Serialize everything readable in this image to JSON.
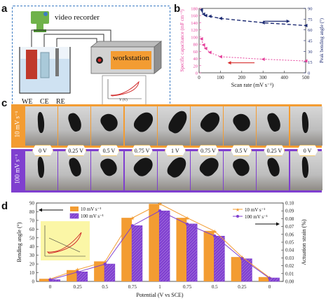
{
  "panels": {
    "a": "a",
    "b": "b",
    "c": "c",
    "d": "d"
  },
  "setup": {
    "video_recorder": "video recorder",
    "workstation": "workstation",
    "electrodes": [
      "WE",
      "CE",
      "RE"
    ],
    "inset_axis": "V (V)"
  },
  "colors": {
    "orange": "#f39c32",
    "purple": "#7f3fcf",
    "pink": "#e5409b",
    "navy": "#1d2b73",
    "dashed_border": "#3d7cc4"
  },
  "panel_c": {
    "row1_label": "10 mV s⁻¹",
    "row2_label": "100 mV s⁻¹",
    "potentials": [
      "0 V",
      "0.25 V",
      "0.5 V",
      "0.75 V",
      "1 V",
      "0.75 V",
      "0.5 V",
      "0.25 V",
      "0 V"
    ]
  },
  "chart_data": [
    {
      "type": "line",
      "xlabel": "Scan rate (mV s⁻¹)",
      "ylabel": "Specific capacitance (mF cm⁻²)",
      "ylabel2": "Peak bending angle (°)",
      "xlim": [
        0,
        500
      ],
      "ylim": [
        0,
        180
      ],
      "ylim2": [
        0,
        90
      ],
      "xticks": [
        0,
        100,
        200,
        300,
        400,
        500
      ],
      "yticks": [
        0,
        20,
        40,
        60,
        80,
        100,
        120,
        140,
        160,
        180
      ],
      "yticks2": [
        0,
        15,
        30,
        45,
        60,
        75,
        90
      ],
      "series": [
        {
          "axis": "left",
          "x": [
            10,
            20,
            30,
            50,
            100,
            300,
            500
          ],
          "values": [
            95,
            78,
            68,
            57,
            45,
            38,
            33
          ]
        },
        {
          "axis": "right",
          "x": [
            10,
            20,
            30,
            50,
            100,
            300,
            500
          ],
          "values": [
            88,
            82,
            80,
            79,
            76,
            70,
            66
          ]
        }
      ]
    },
    {
      "type": "bar",
      "xlabel": "Potential (V vs SCE)",
      "ylabel": "Bending angle (°)",
      "ylabel2": "Actuation strain (%)",
      "categories": [
        "0",
        "0.25",
        "0.5",
        "0.75",
        "1",
        "0.75",
        "0.5",
        "0.25",
        "0"
      ],
      "ylim": [
        0,
        90
      ],
      "ylim2": [
        0,
        0.1
      ],
      "yticks": [
        0,
        10,
        20,
        30,
        40,
        50,
        60,
        70,
        80,
        90
      ],
      "yticks2": [
        0,
        0.01,
        0.02,
        0.03,
        0.04,
        0.05,
        0.06,
        0.07,
        0.08,
        0.09,
        0.1
      ],
      "series": [
        {
          "name": "10 mV s⁻¹",
          "values": [
            3,
            13,
            23,
            73,
            89,
            73,
            58,
            28,
            5
          ]
        },
        {
          "name": "100 mV s⁻¹",
          "values": [
            2,
            11,
            20,
            64,
            81,
            66,
            52,
            26,
            4
          ]
        }
      ],
      "strain_series": [
        {
          "name": "10 mV s⁻¹",
          "values": [
            0.003,
            0.015,
            0.025,
            0.081,
            0.099,
            0.081,
            0.064,
            0.031,
            0.005
          ]
        },
        {
          "name": "100 mV s⁻¹",
          "values": [
            0.002,
            0.012,
            0.022,
            0.071,
            0.09,
            0.073,
            0.058,
            0.029,
            0.004
          ]
        }
      ]
    }
  ]
}
